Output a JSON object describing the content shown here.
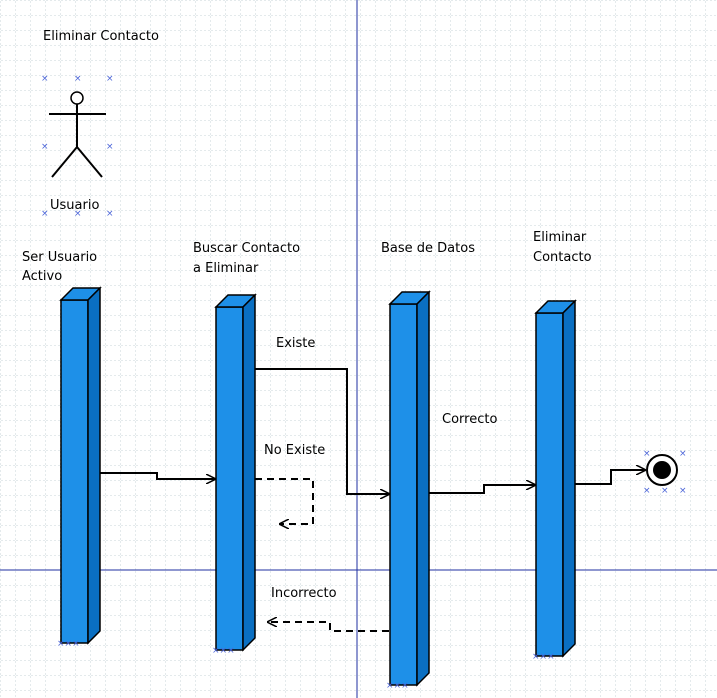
{
  "diagram": {
    "title": "Eliminar Contacto",
    "actor": {
      "label": "Usuario"
    },
    "columns": [
      {
        "id": "col-ser-usuario-activo",
        "lines": [
          "Ser Usuario",
          "Activo"
        ]
      },
      {
        "id": "col-buscar-contacto",
        "lines": [
          "Buscar Contacto",
          "a Eliminar"
        ]
      },
      {
        "id": "col-base-de-datos",
        "lines": [
          "Base de Datos"
        ]
      },
      {
        "id": "col-eliminar-contacto",
        "lines": [
          "Eliminar",
          "Contacto"
        ]
      }
    ],
    "flows": [
      {
        "id": "flow-existe",
        "label": "Existe",
        "style": "solid"
      },
      {
        "id": "flow-no-existe",
        "label": "No Existe",
        "style": "dashed"
      },
      {
        "id": "flow-correcto",
        "label": "Correcto",
        "style": "solid"
      },
      {
        "id": "flow-incorrecto",
        "label": "Incorrecto",
        "style": "dashed"
      }
    ],
    "end_node": {
      "type": "final-state"
    }
  },
  "colors": {
    "bar_front": "#1e90e8",
    "bar_side": "#0a6fc2",
    "grid": "#c8d4d8",
    "guide": "#1f2fa0",
    "handle": "#4a63d8"
  }
}
